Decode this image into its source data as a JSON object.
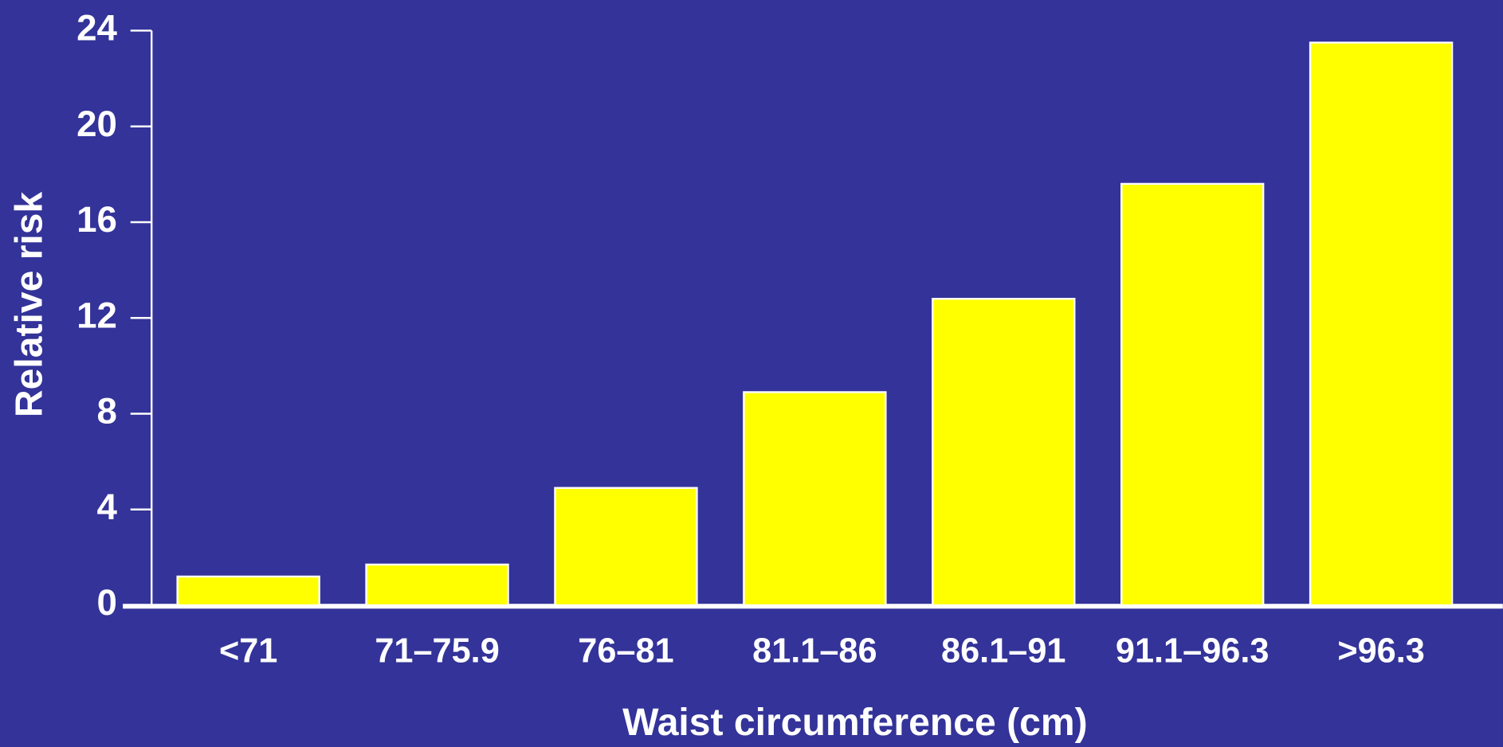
{
  "chart_data": {
    "type": "bar",
    "x_label": "Waist circumference (cm)",
    "y_label": "Relative risk",
    "categories": [
      "<71",
      "71–75.9",
      "76–81",
      "81.1–86",
      "86.1–91",
      "91.1–96.3",
      ">96.3"
    ],
    "values": [
      1.2,
      1.7,
      4.9,
      8.9,
      12.8,
      17.6,
      23.5
    ],
    "color": "#ffff00",
    "ylim": [
      0,
      24
    ],
    "yticks": [
      0,
      4,
      8,
      12,
      16,
      20,
      24
    ],
    "grid": false
  }
}
